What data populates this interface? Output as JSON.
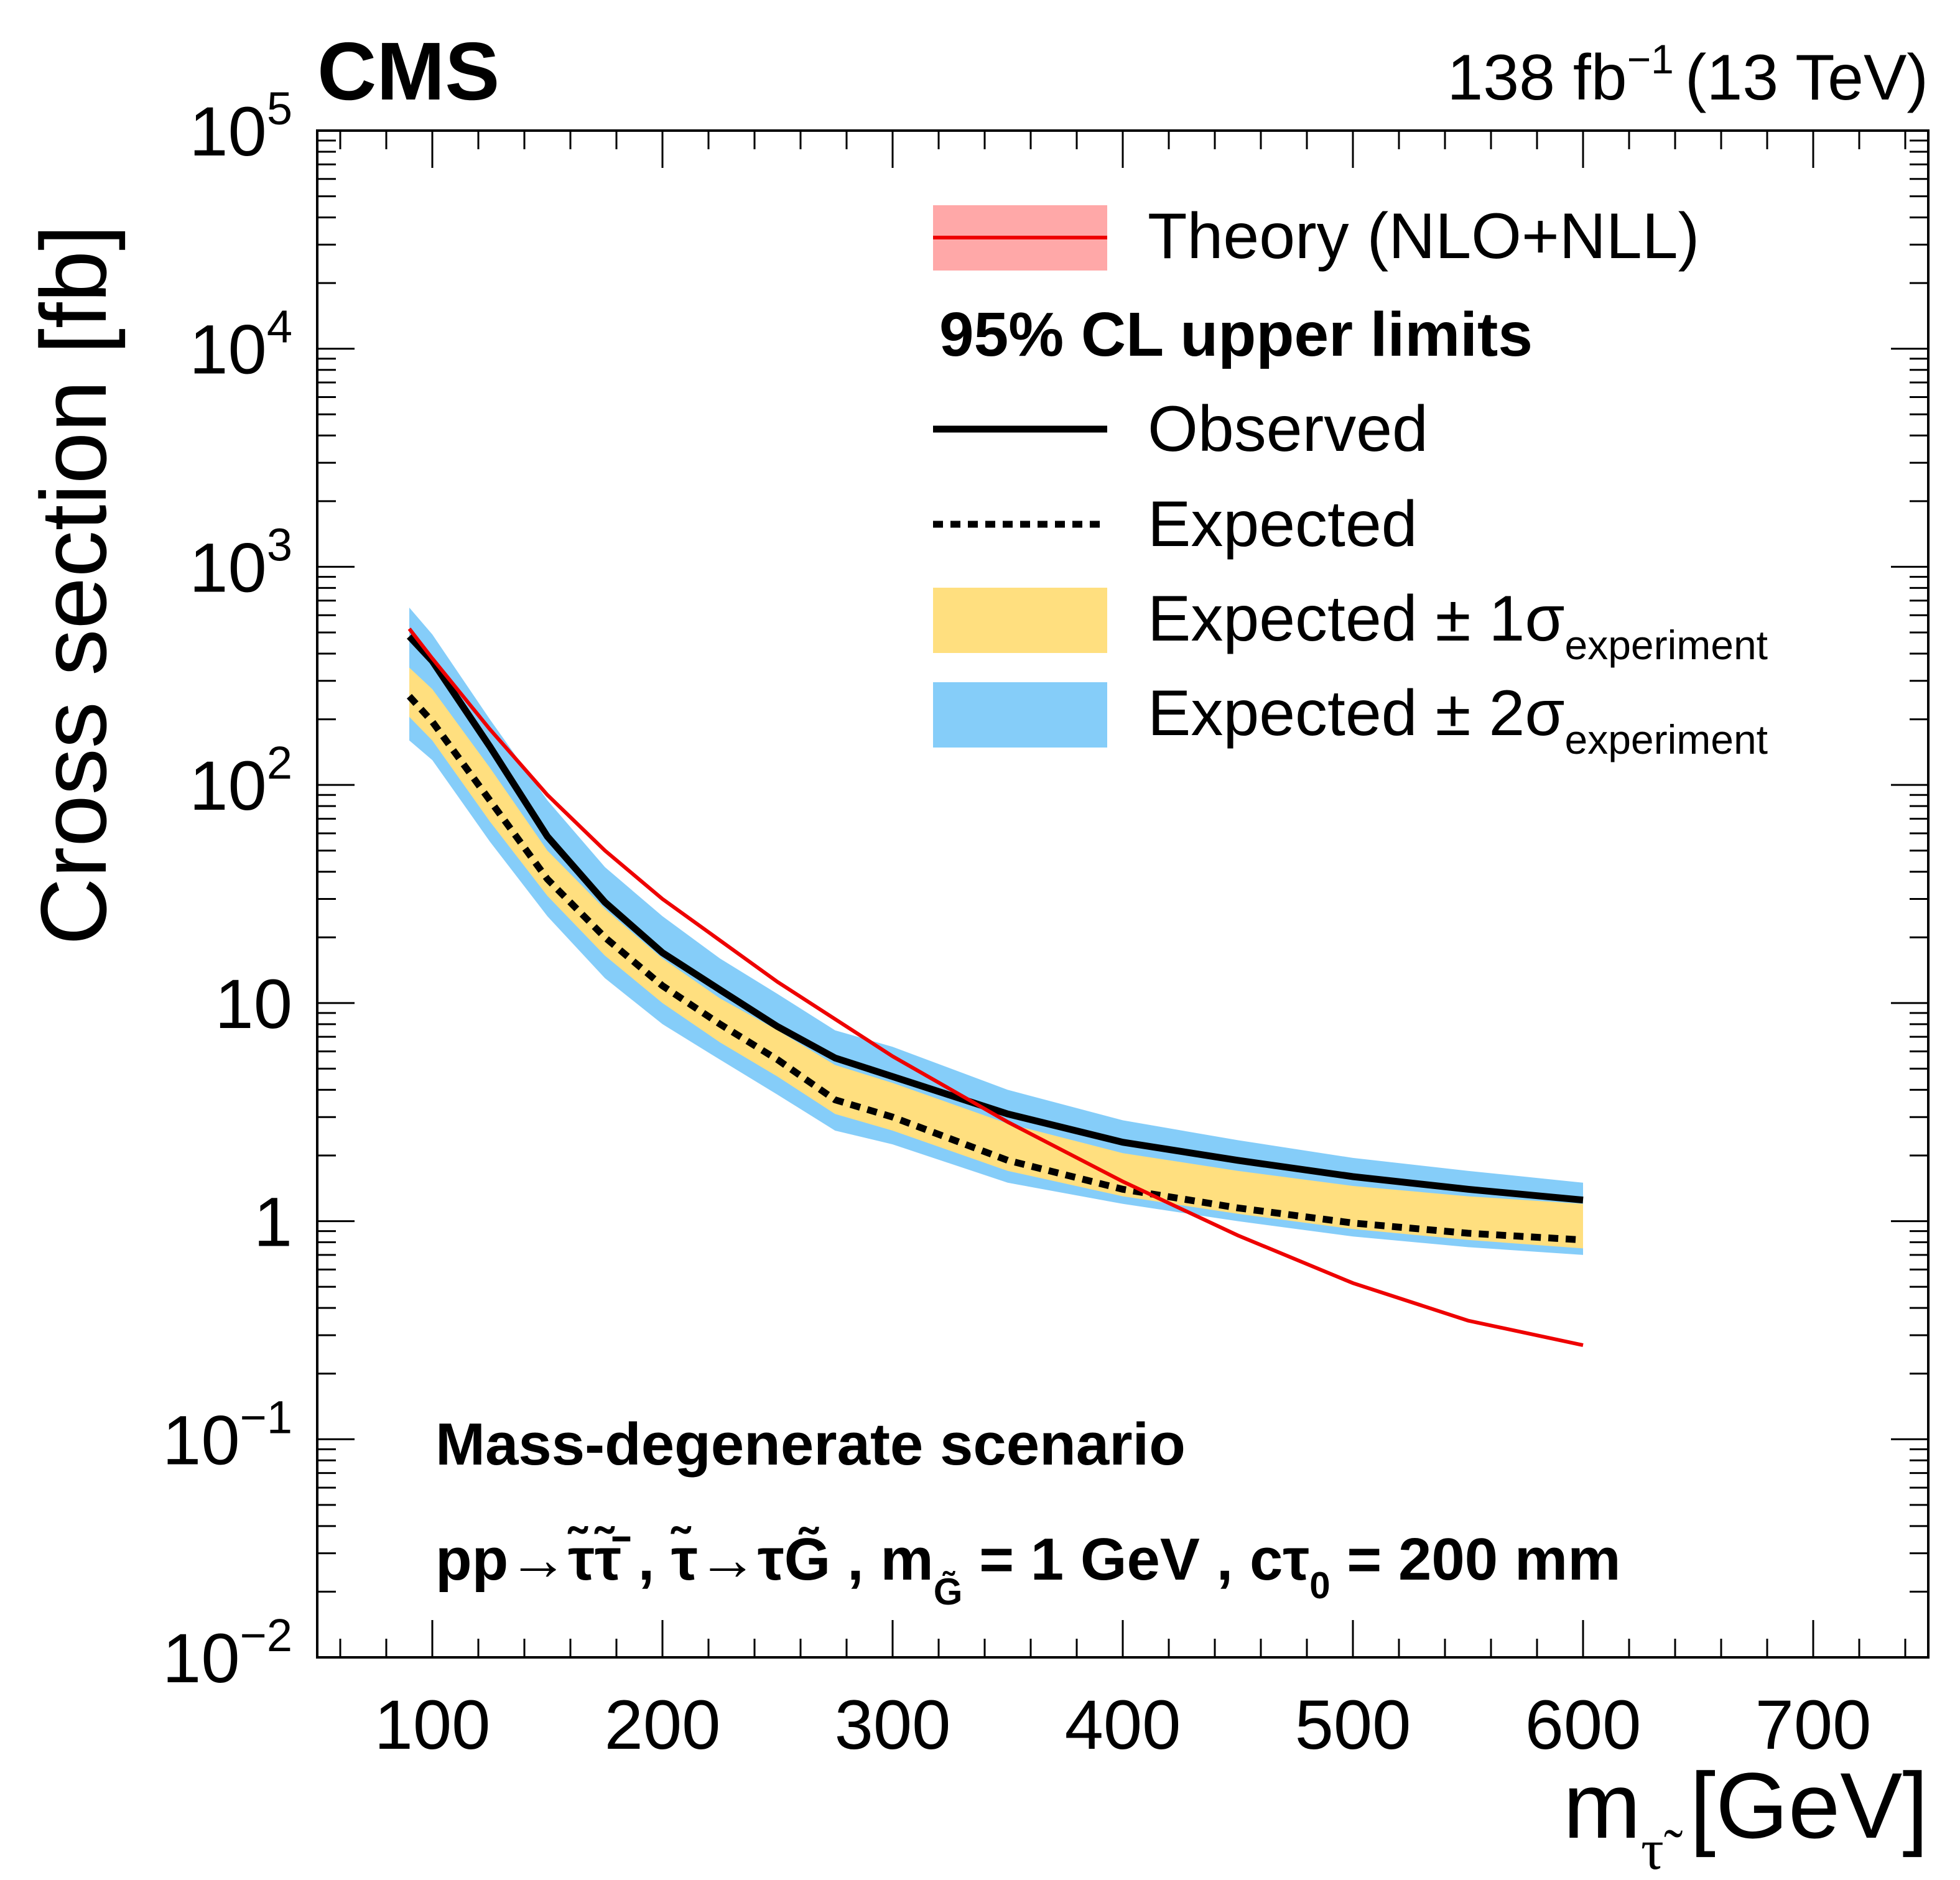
{
  "header": {
    "experiment": "CMS",
    "lumi": "138 fb",
    "lumi_exp": "−1",
    "energy": "(13 TeV)"
  },
  "colors": {
    "theory_line": "#ee0000",
    "theory_band": "#ffa8a8",
    "one_sigma": "#ffdf7f",
    "two_sigma": "#85cdf9",
    "observed": "#000000",
    "expected": "#000000"
  },
  "legend": {
    "theory": "Theory (NLO+NLL)",
    "heading": "95% CL upper limits",
    "observed": "Observed",
    "expected": "Expected",
    "one_sigma_main": "Expected ± 1σ",
    "one_sigma_sub": "experiment",
    "two_sigma_main": "Expected ± 2σ",
    "two_sigma_sub": "experiment"
  },
  "annotations": {
    "scenario": "Mass-degenerate scenario",
    "process": "pp→τ̃τ̃̄ ,   τ̃→τG̃ , m",
    "process_sub": "G̃",
    "process_tail": " = 1 GeV , cτ",
    "process_sub2": "0",
    "process_end": " = 200 mm"
  },
  "axes": {
    "ylabel": "Cross section [fb]",
    "xlabel_main": "m",
    "xlabel_sub": "τ̃",
    "xlabel_unit": " [GeV]",
    "y_ticks": [
      {
        "value": 0.01,
        "base": "10",
        "exp": "−2"
      },
      {
        "value": 0.1,
        "base": "10",
        "exp": "−1"
      },
      {
        "value": 1,
        "base": "1",
        "exp": ""
      },
      {
        "value": 10,
        "base": "10",
        "exp": ""
      },
      {
        "value": 100,
        "base": "10",
        "exp": "2"
      },
      {
        "value": 1000,
        "base": "10",
        "exp": "3"
      },
      {
        "value": 10000,
        "base": "10",
        "exp": "4"
      },
      {
        "value": 100000,
        "base": "10",
        "exp": "5"
      }
    ],
    "x_ticks": [
      "100",
      "200",
      "300",
      "400",
      "500",
      "600",
      "700"
    ]
  },
  "chart_data": {
    "type": "line",
    "xlim": [
      50,
      750
    ],
    "ylim": [
      0.01,
      100000
    ],
    "yscale": "log",
    "grid": false,
    "legend_position": "top-right",
    "x": [
      90,
      100,
      125,
      150,
      175,
      200,
      225,
      250,
      275,
      300,
      350,
      400,
      450,
      500,
      550,
      600
    ],
    "series": [
      {
        "name": "Observed",
        "values": [
          480,
          370,
          150,
          58,
          29,
          17,
          11.5,
          7.8,
          5.6,
          4.6,
          3.1,
          2.3,
          1.9,
          1.6,
          1.4,
          1.25
        ]
      },
      {
        "name": "Expected",
        "values": [
          255,
          195,
          85,
          37,
          20,
          12,
          8,
          5.5,
          3.6,
          3.0,
          1.9,
          1.4,
          1.15,
          0.98,
          0.88,
          0.82
        ]
      },
      {
        "name": "Expected ± 1σ",
        "lower": [
          205,
          160,
          68,
          31,
          16.5,
          10,
          6.6,
          4.6,
          3.1,
          2.6,
          1.7,
          1.3,
          1.08,
          0.92,
          0.82,
          0.75
        ],
        "upper": [
          345,
          275,
          120,
          50,
          27,
          16,
          10.5,
          7.5,
          5.2,
          4.3,
          2.8,
          2.05,
          1.7,
          1.45,
          1.3,
          1.2
        ]
      },
      {
        "name": "Expected ± 2σ",
        "lower": [
          160,
          130,
          55,
          25,
          13,
          8,
          5.5,
          3.8,
          2.6,
          2.25,
          1.5,
          1.2,
          1.0,
          0.85,
          0.76,
          0.7
        ],
        "upper": [
          650,
          490,
          200,
          85,
          42,
          25,
          16,
          11,
          7.5,
          6.3,
          4.0,
          2.9,
          2.35,
          1.95,
          1.7,
          1.5
        ]
      },
      {
        "name": "Theory (NLO+NLL)",
        "x": [
          90,
          100,
          125,
          150,
          175,
          200,
          250,
          300,
          350,
          400,
          450,
          500,
          550,
          600
        ],
        "values": [
          520,
          380,
          180,
          90,
          50,
          30,
          12.5,
          5.7,
          2.85,
          1.52,
          0.86,
          0.52,
          0.35,
          0.27
        ]
      }
    ]
  }
}
